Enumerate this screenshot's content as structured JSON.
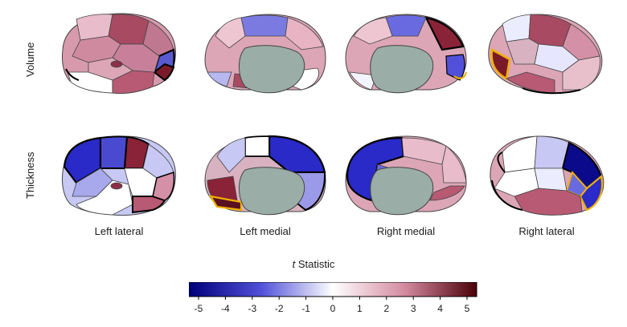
{
  "rows": {
    "volume": "Volume",
    "thickness": "Thickness"
  },
  "columns": [
    "Left lateral",
    "Left medial",
    "Right medial",
    "Right lateral"
  ],
  "colorbar": {
    "title_italic": "t",
    "title_rest": " Statistic",
    "ticks": [
      "-5",
      "-4",
      "-3",
      "-2",
      "-1",
      "0",
      "1",
      "2",
      "3",
      "4",
      "5"
    ],
    "colors": {
      "neg_max": "#00007a",
      "neg_mid": "#5050d8",
      "zero": "#ffffff",
      "pos_mid": "#d48aa0",
      "pos_max": "#4a0008"
    }
  },
  "highlight_colors": {
    "significant_outline": "#000000",
    "fdr_outline": "#f0b000",
    "subcortical_fill": "#9aada6"
  }
}
